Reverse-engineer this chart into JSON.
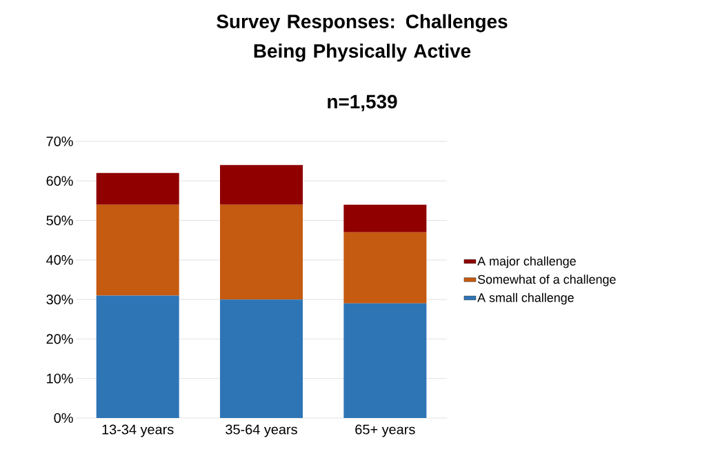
{
  "chart_data": {
    "type": "bar",
    "stacked": true,
    "title": "Survey Responses: Challenges Being Physically Active",
    "subtitle": "n=1,539",
    "categories": [
      "13-34 years",
      "35-64 years",
      "65+ years"
    ],
    "series": [
      {
        "name": "A small challenge",
        "color": "#2e75b6",
        "values": [
          31,
          30,
          29
        ]
      },
      {
        "name": "Somewhat of a challenge",
        "color": "#c55a11",
        "values": [
          23,
          24,
          18
        ]
      },
      {
        "name": "A major challenge",
        "color": "#900000",
        "values": [
          8,
          10,
          7
        ]
      }
    ],
    "ylim": [
      0,
      70
    ],
    "yticks": [
      {
        "value": 0,
        "label": "0%"
      },
      {
        "value": 10,
        "label": "10%"
      },
      {
        "value": 20,
        "label": "20%"
      },
      {
        "value": 30,
        "label": "30%"
      },
      {
        "value": 40,
        "label": "40%"
      },
      {
        "value": 50,
        "label": "50%"
      },
      {
        "value": 60,
        "label": "60%"
      },
      {
        "value": 70,
        "label": "70%"
      }
    ],
    "grid": "y",
    "legend": "right"
  }
}
